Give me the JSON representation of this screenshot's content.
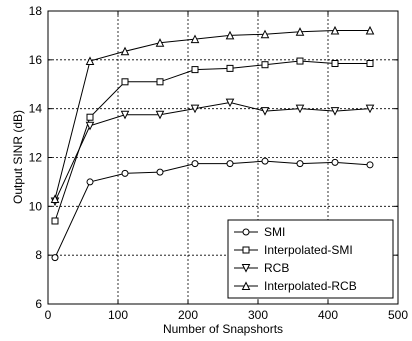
{
  "chart_data": {
    "type": "line",
    "xlabel": "Number of Snapshorts",
    "ylabel": "Output SINR (dB)",
    "xlim": [
      0,
      500
    ],
    "ylim": [
      6,
      18
    ],
    "xticks": [
      0,
      100,
      200,
      300,
      400,
      500
    ],
    "yticks": [
      6,
      8,
      10,
      12,
      14,
      16,
      18
    ],
    "grid": true,
    "legend_position": "bottom-right",
    "x": [
      10,
      60,
      110,
      160,
      210,
      260,
      310,
      360,
      410,
      460
    ],
    "series": [
      {
        "name": "SMI",
        "marker": "circle",
        "values": [
          7.9,
          11.0,
          11.35,
          11.4,
          11.75,
          11.75,
          11.85,
          11.75,
          11.8,
          11.7
        ]
      },
      {
        "name": "Interpolated-SMI",
        "marker": "square",
        "values": [
          9.4,
          13.65,
          15.1,
          15.1,
          15.6,
          15.65,
          15.8,
          15.95,
          15.85,
          15.85
        ]
      },
      {
        "name": "RCB",
        "marker": "triangle-down",
        "values": [
          10.2,
          13.3,
          13.75,
          13.75,
          14.0,
          14.25,
          13.9,
          14.0,
          13.9,
          14.0
        ]
      },
      {
        "name": "Interpolated-RCB",
        "marker": "triangle-up",
        "values": [
          10.3,
          15.95,
          16.35,
          16.7,
          16.85,
          17.0,
          17.05,
          17.15,
          17.2,
          17.2
        ]
      }
    ]
  }
}
